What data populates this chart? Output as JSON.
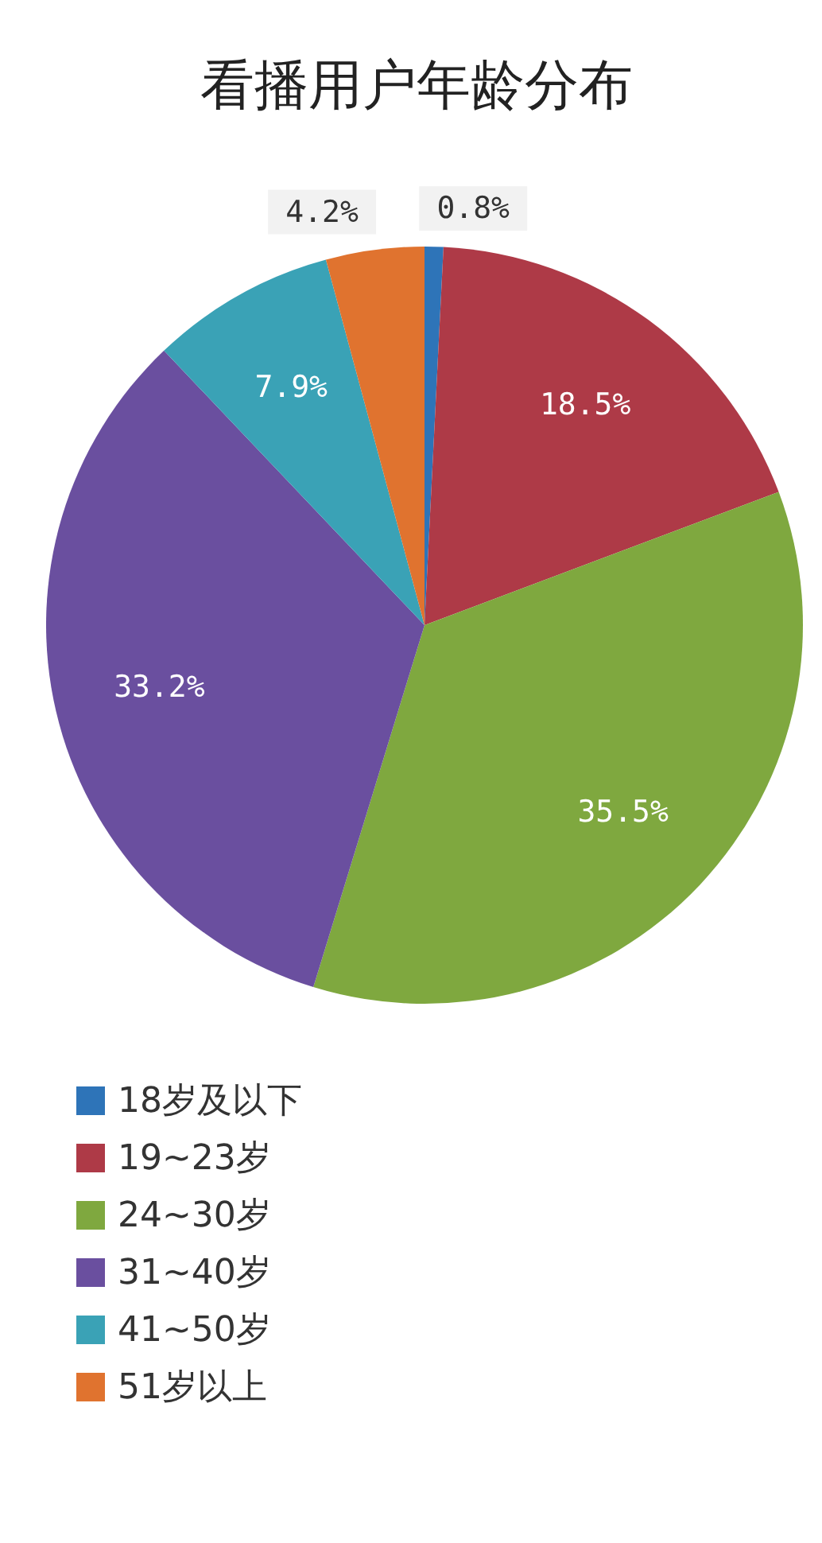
{
  "chart_data": {
    "type": "pie",
    "title": "看播用户年龄分布",
    "categories": [
      "18岁及以下",
      "19~23岁",
      "24~30岁",
      "31~40岁",
      "41~50岁",
      "51岁以上"
    ],
    "values": [
      0.8,
      18.5,
      35.5,
      33.2,
      7.9,
      4.2
    ],
    "value_labels": [
      "0.8%",
      "18.5%",
      "35.5%",
      "33.2%",
      "7.9%",
      "4.2%"
    ],
    "colors": [
      "#2e74b8",
      "#ae3a47",
      "#7fa83f",
      "#6a4f9f",
      "#3aa2b6",
      "#e0732f"
    ],
    "data_labels": true,
    "legend": "bottom left"
  }
}
